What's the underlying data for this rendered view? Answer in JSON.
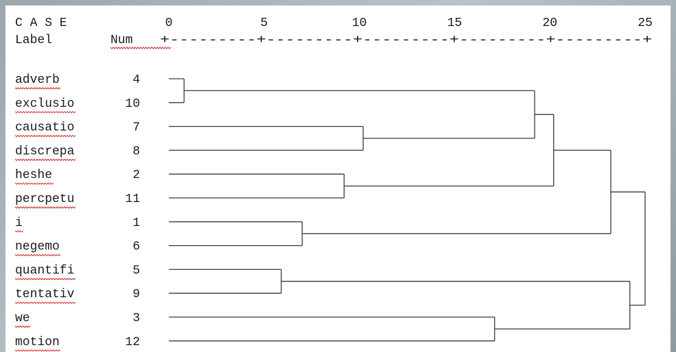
{
  "header": {
    "case_text": "C A S E",
    "label_text": "Label",
    "num_text": "Num",
    "scale_ruler": "+---------+---------+---------+---------+---------+"
  },
  "scale": {
    "ticks": [
      "0",
      "5",
      "10",
      "15",
      "20",
      "25"
    ],
    "values": [
      0,
      5,
      10,
      15,
      20,
      25
    ]
  },
  "cases": [
    {
      "label": "adverb",
      "num": "4"
    },
    {
      "label": "exclusio",
      "num": "10"
    },
    {
      "label": "causatio",
      "num": "7"
    },
    {
      "label": "discrepa",
      "num": "8"
    },
    {
      "label": "heshe",
      "num": "2"
    },
    {
      "label": "percpetu",
      "num": "11"
    },
    {
      "label": "i",
      "num": "1"
    },
    {
      "label": "negemo",
      "num": "6"
    },
    {
      "label": "quantifi",
      "num": "5"
    },
    {
      "label": "tentativ",
      "num": "9"
    },
    {
      "label": "we",
      "num": "3"
    },
    {
      "label": "motion",
      "num": "12"
    }
  ],
  "merges": [
    {
      "a": 0,
      "b": 1,
      "dist": 0.8
    },
    {
      "a": 8,
      "b": 9,
      "dist": 5.9
    },
    {
      "a": 6,
      "b": 7,
      "dist": 7.0
    },
    {
      "a": 4,
      "b": 5,
      "dist": 9.2
    },
    {
      "a": 2,
      "b": 3,
      "dist": 10.2
    },
    {
      "a": 10,
      "b": 11,
      "dist": 17.1
    },
    {
      "a": "m0",
      "b": "m4",
      "dist": 19.2
    },
    {
      "a": "m6",
      "b": "m3",
      "dist": 20.2
    },
    {
      "a": "m7",
      "b": "m2",
      "dist": 23.2
    },
    {
      "a": "m1",
      "b": "m5",
      "dist": 24.2
    },
    {
      "a": "m8",
      "b": "m9",
      "dist": 25.0
    }
  ]
}
